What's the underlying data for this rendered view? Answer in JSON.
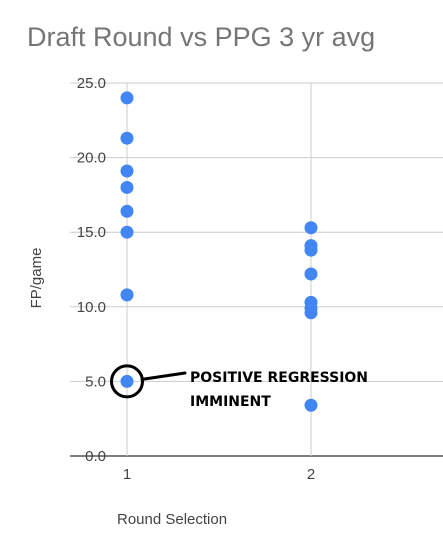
{
  "chart_data": {
    "type": "scatter",
    "title": "Draft Round vs PPG 3 yr avg",
    "xlabel": "Round Selection",
    "ylabel": "FP/game",
    "x_ticks": [
      1,
      2
    ],
    "y_ticks": [
      "0.0",
      "5.0",
      "10.0",
      "15.0",
      "20.0",
      "25.0"
    ],
    "xlim": [
      0.6,
      2.5
    ],
    "ylim": [
      0,
      25
    ],
    "grid": true,
    "point_color": "#4285f4",
    "series": [
      {
        "points": [
          {
            "x": 1,
            "y": 24.0
          },
          {
            "x": 1,
            "y": 21.3
          },
          {
            "x": 1,
            "y": 19.1
          },
          {
            "x": 1,
            "y": 18.0
          },
          {
            "x": 1,
            "y": 16.4
          },
          {
            "x": 1,
            "y": 15.0
          },
          {
            "x": 1,
            "y": 10.8
          },
          {
            "x": 1,
            "y": 5.0
          },
          {
            "x": 2,
            "y": 15.3
          },
          {
            "x": 2,
            "y": 14.1
          },
          {
            "x": 2,
            "y": 13.8
          },
          {
            "x": 2,
            "y": 12.2
          },
          {
            "x": 2,
            "y": 10.3
          },
          {
            "x": 2,
            "y": 9.9
          },
          {
            "x": 2,
            "y": 9.6
          },
          {
            "x": 2,
            "y": 3.4
          }
        ]
      }
    ],
    "annotation": {
      "lines": [
        "POSITIVE REGRESSION",
        "IMMINENT"
      ],
      "target": {
        "x": 1,
        "y": 5.0
      }
    }
  }
}
